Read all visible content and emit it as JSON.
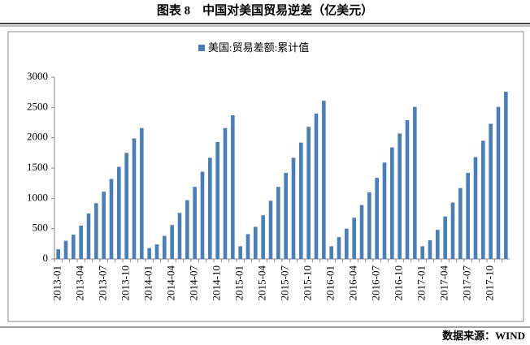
{
  "chart_data": {
    "type": "bar",
    "title": "图表 8　中国对美国贸易逆差（亿美元）",
    "source": "数据来源：WIND",
    "categories": [
      "2013-01",
      null,
      null,
      "2013-04",
      null,
      null,
      "2013-07",
      null,
      null,
      "2013-10",
      null,
      null,
      "2014-01",
      null,
      null,
      "2014-04",
      null,
      null,
      "2014-07",
      null,
      null,
      "2014-10",
      null,
      null,
      "2015-01",
      null,
      null,
      "2015-04",
      null,
      null,
      "2015-07",
      null,
      null,
      "2015-10",
      null,
      null,
      "2016-01",
      null,
      null,
      "2016-04",
      null,
      null,
      "2016-07",
      null,
      null,
      "2016-10",
      null,
      null,
      "2017-01",
      null,
      null,
      "2017-04",
      null,
      null,
      "2017-07",
      null,
      null,
      "2017-10",
      null,
      null
    ],
    "series": [
      {
        "name": "美国:贸易差额:累计值",
        "color": "#4a7ebb",
        "values": [
          160,
          300,
          400,
          550,
          750,
          920,
          1110,
          1320,
          1520,
          1750,
          1990,
          2160,
          180,
          240,
          380,
          560,
          760,
          970,
          1190,
          1440,
          1670,
          1930,
          2160,
          2370,
          210,
          410,
          530,
          720,
          960,
          1190,
          1420,
          1670,
          1920,
          2180,
          2400,
          2610,
          210,
          360,
          500,
          680,
          890,
          1100,
          1340,
          1590,
          1840,
          2070,
          2290,
          2510,
          210,
          310,
          480,
          700,
          930,
          1170,
          1420,
          1680,
          1950,
          2230,
          2510,
          2760
        ]
      }
    ],
    "ylim": [
      0,
      3000
    ],
    "yticks": [
      0,
      500,
      1000,
      1500,
      2000,
      2500,
      3000
    ],
    "legend": "top"
  }
}
